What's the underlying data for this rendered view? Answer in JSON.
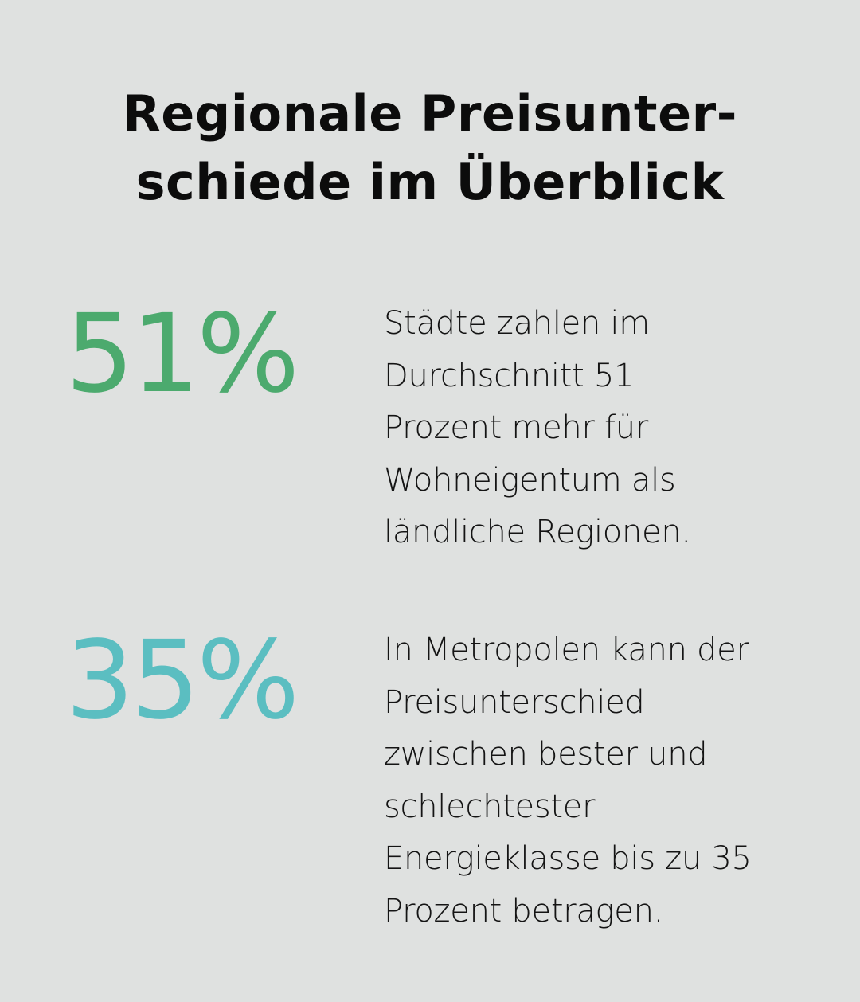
{
  "title": {
    "line1": "Regionale Preisunter-",
    "line2": "schiede im Überblick"
  },
  "stats": [
    {
      "value": "51%",
      "color": "#4caa6e",
      "lines": [
        "Städte zahlen im",
        "Durchschnitt 51",
        "Prozent mehr für",
        "Wohneigentum als",
        "ländliche Regionen."
      ]
    },
    {
      "value": "35%",
      "color": "#5bbec1",
      "lines": [
        "In Metropolen kann der",
        "Preisunterschied",
        "zwischen bester und",
        "schlechtester",
        "Energieklasse bis zu 35",
        "Prozent betragen."
      ]
    }
  ]
}
